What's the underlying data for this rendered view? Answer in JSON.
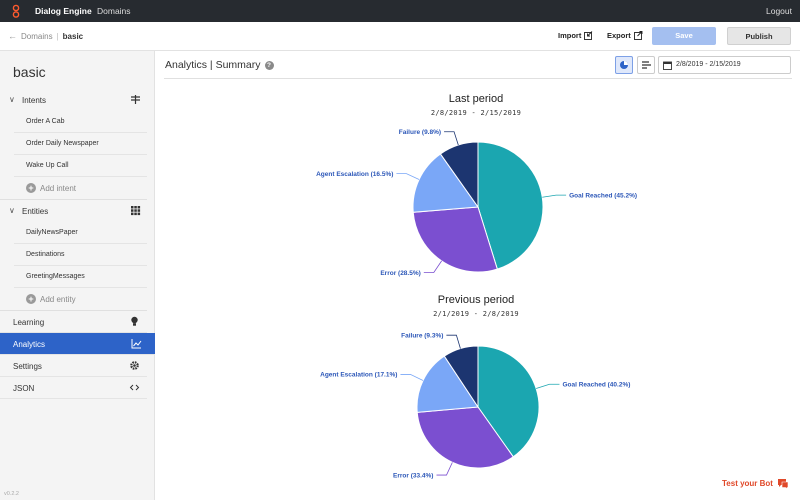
{
  "topbar": {
    "app_name": "Dialog Engine",
    "nav_domains": "Domains",
    "logout": "Logout"
  },
  "subbar": {
    "crumb_root": "Domains",
    "crumb_current": "basic",
    "import_label": "Import",
    "export_label": "Export",
    "save_label": "Save",
    "publish_label": "Publish"
  },
  "sidebar": {
    "title": "basic",
    "intents_label": "Intents",
    "intents": [
      "Order A Cab",
      "Order Daily Newspaper",
      "Wake Up Call"
    ],
    "add_intent": "Add intent",
    "entities_label": "Entities",
    "entities": [
      "DailyNewsPaper",
      "Destinations",
      "GreetingMessages"
    ],
    "add_entity": "Add entity",
    "nav": [
      "Learning",
      "Analytics",
      "Settings",
      "JSON"
    ],
    "active_nav": "Analytics",
    "version": "v0.2.2"
  },
  "main": {
    "title": "Analytics | Summary",
    "date_range": "2/8/2019 - 2/15/2019"
  },
  "chart_data": [
    {
      "type": "pie",
      "title": "Last period",
      "subtitle": "2/8/2019 - 2/15/2019",
      "labels": [
        "Goal Reached (45.2%)",
        "Error (28.5%)",
        "Agent Escalation (16.5%)",
        "Failure (9.8%)"
      ],
      "values": [
        45.2,
        28.5,
        16.5,
        9.8
      ],
      "colors": [
        "#1ba6b0",
        "#7b4fd0",
        "#7aa7f7",
        "#1c3570"
      ]
    },
    {
      "type": "pie",
      "title": "Previous period",
      "subtitle": "2/1/2019 - 2/8/2019",
      "labels": [
        "Goal Reached (40.2%)",
        "Error (33.4%)",
        "Agent Escalation (17.1%)",
        "Failure (9.3%)"
      ],
      "values": [
        40.2,
        33.4,
        17.1,
        9.3
      ],
      "colors": [
        "#1ba6b0",
        "#7b4fd0",
        "#7aa7f7",
        "#1c3570"
      ]
    }
  ],
  "test_bot": "Test your Bot"
}
